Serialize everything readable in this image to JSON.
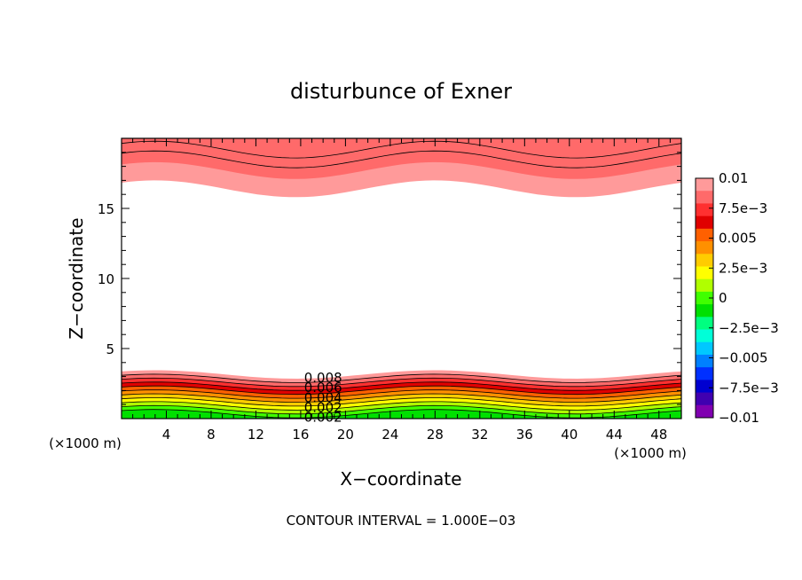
{
  "chart_data": {
    "type": "contour",
    "title": "disturbunce of Exner",
    "xlabel": "X−coordinate",
    "ylabel": "Z−coordinate",
    "x_unit_left": "(×1000 m)",
    "x_unit_right": "(×1000 m)",
    "footer": "CONTOUR INTERVAL = 1.000E−03",
    "xlim": [
      0,
      50
    ],
    "ylim": [
      0,
      20
    ],
    "x_ticks": [
      4,
      8,
      12,
      16,
      20,
      24,
      28,
      32,
      36,
      40,
      44,
      48
    ],
    "x_tick_labels": [
      "4",
      "8",
      "12",
      "16",
      "20",
      "24",
      "28",
      "32",
      "36",
      "40",
      "44",
      "48"
    ],
    "y_ticks": [
      5,
      10,
      15
    ],
    "y_tick_labels": [
      "5",
      "10",
      "15"
    ],
    "contour_labels": [
      {
        "text": "0.008",
        "x": 18,
        "z": 2.9
      },
      {
        "text": "0.006",
        "x": 18,
        "z": 2.2
      },
      {
        "text": "0.004",
        "x": 18,
        "z": 1.5
      },
      {
        "text": "0.002",
        "x": 18,
        "z": 0.8
      },
      {
        "text": "0.002",
        "x": 18,
        "z": 0.1
      }
    ],
    "colorbar": {
      "min": -0.01,
      "max": 0.01,
      "tick_labels": [
        "0.01",
        "7.5e−3",
        "0.005",
        "2.5e−3",
        "0",
        "−2.5e−3",
        "−0.005",
        "−7.5e−3",
        "−0.01"
      ],
      "tick_values": [
        0.01,
        0.0075,
        0.005,
        0.0025,
        0,
        -0.0025,
        -0.005,
        -0.0075,
        -0.01
      ],
      "colors": [
        "#ff9a9a",
        "#ff6a6a",
        "#ff3030",
        "#e00000",
        "#ff6000",
        "#ff9000",
        "#ffcc00",
        "#ffff00",
        "#b0ff00",
        "#40ff00",
        "#00e000",
        "#00ff80",
        "#00ffd8",
        "#00c8ff",
        "#0080ff",
        "#0030ff",
        "#0000d0",
        "#4000b0",
        "#8000b0"
      ]
    }
  }
}
